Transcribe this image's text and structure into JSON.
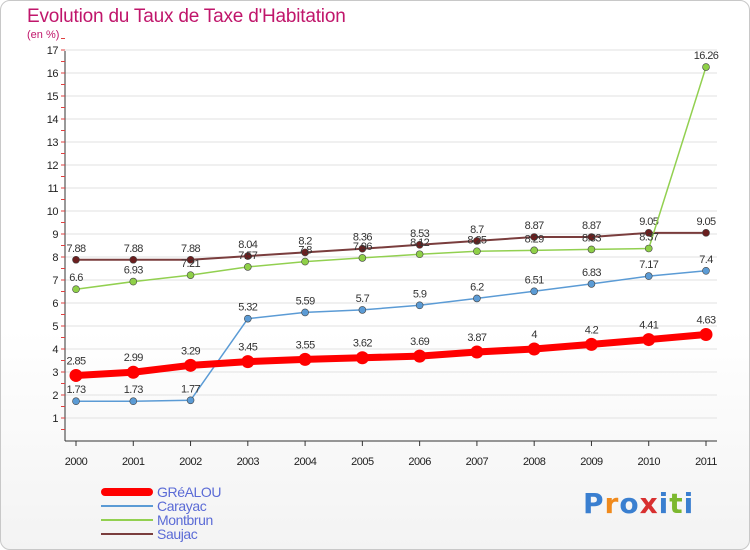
{
  "title": "Evolution du Taux de Taxe d'Habitation",
  "subtitle": "(en %)",
  "logo": {
    "text": "Proxiti",
    "letters": [
      "P",
      "r",
      "o",
      "x",
      "i",
      "t",
      "i"
    ],
    "colors": [
      "#3a7fd0",
      "#f08a1c",
      "#3a7fd0",
      "#d83030",
      "#3a7fd0",
      "#7cb82f",
      "#3a7fd0"
    ]
  },
  "chart_data": {
    "type": "line",
    "x": [
      "2000",
      "2001",
      "2002",
      "2003",
      "2004",
      "2005",
      "2006",
      "2007",
      "2008",
      "2009",
      "2010",
      "2011"
    ],
    "ylim": [
      0,
      17
    ],
    "yticks": [
      1,
      2,
      3,
      4,
      5,
      6,
      7,
      8,
      9,
      10,
      11,
      12,
      13,
      14,
      15,
      16,
      17
    ],
    "legend_position": "bottom-left",
    "series": [
      {
        "name": "Saujac",
        "color": "#7a3d3d",
        "values": [
          7.88,
          7.88,
          7.88,
          8.04,
          8.2,
          8.36,
          8.53,
          8.7,
          8.87,
          8.87,
          9.05,
          9.05
        ],
        "labels": [
          "7.88",
          "7.88",
          "7.88",
          "8.04",
          "8.2",
          "8.36",
          "8.53",
          "8.7",
          "8.87",
          "8.87",
          "9.05",
          "9.05"
        ]
      },
      {
        "name": "Montbrun",
        "color": "#92d050",
        "values": [
          6.6,
          6.93,
          7.21,
          7.57,
          7.8,
          7.96,
          8.12,
          8.25,
          8.29,
          8.33,
          8.37,
          16.26
        ],
        "labels": [
          "6.6",
          "6.93",
          "7.21",
          "7.57",
          "7.8",
          "7.96",
          "8.12",
          "8.25",
          "8.29",
          "8.33",
          "8.37",
          "16.26"
        ]
      },
      {
        "name": "Carayac",
        "color": "#5b9bd5",
        "values": [
          1.73,
          1.73,
          1.77,
          5.32,
          5.59,
          5.7,
          5.9,
          6.2,
          6.51,
          6.83,
          7.17,
          7.4
        ],
        "labels": [
          "1.73",
          "1.73",
          "1.77",
          "5.32",
          "5.59",
          "5.7",
          "5.9",
          "6.2",
          "6.51",
          "6.83",
          "7.17",
          "7.4"
        ]
      },
      {
        "name": "GRéALOU",
        "color": "#ff0000",
        "values": [
          2.85,
          2.99,
          3.29,
          3.45,
          3.55,
          3.62,
          3.69,
          3.87,
          4,
          4.2,
          4.41,
          4.63
        ],
        "labels": [
          "2.85",
          "2.99",
          "3.29",
          "3.45",
          "3.55",
          "3.62",
          "3.69",
          "3.87",
          "4",
          "4.2",
          "4.41",
          "4.63"
        ]
      }
    ]
  },
  "legend": [
    {
      "name": "GRéALOU",
      "color": "#ff0000"
    },
    {
      "name": "Carayac",
      "color": "#5b9bd5"
    },
    {
      "name": "Montbrun",
      "color": "#92d050"
    },
    {
      "name": "Saujac",
      "color": "#7a3d3d"
    }
  ]
}
